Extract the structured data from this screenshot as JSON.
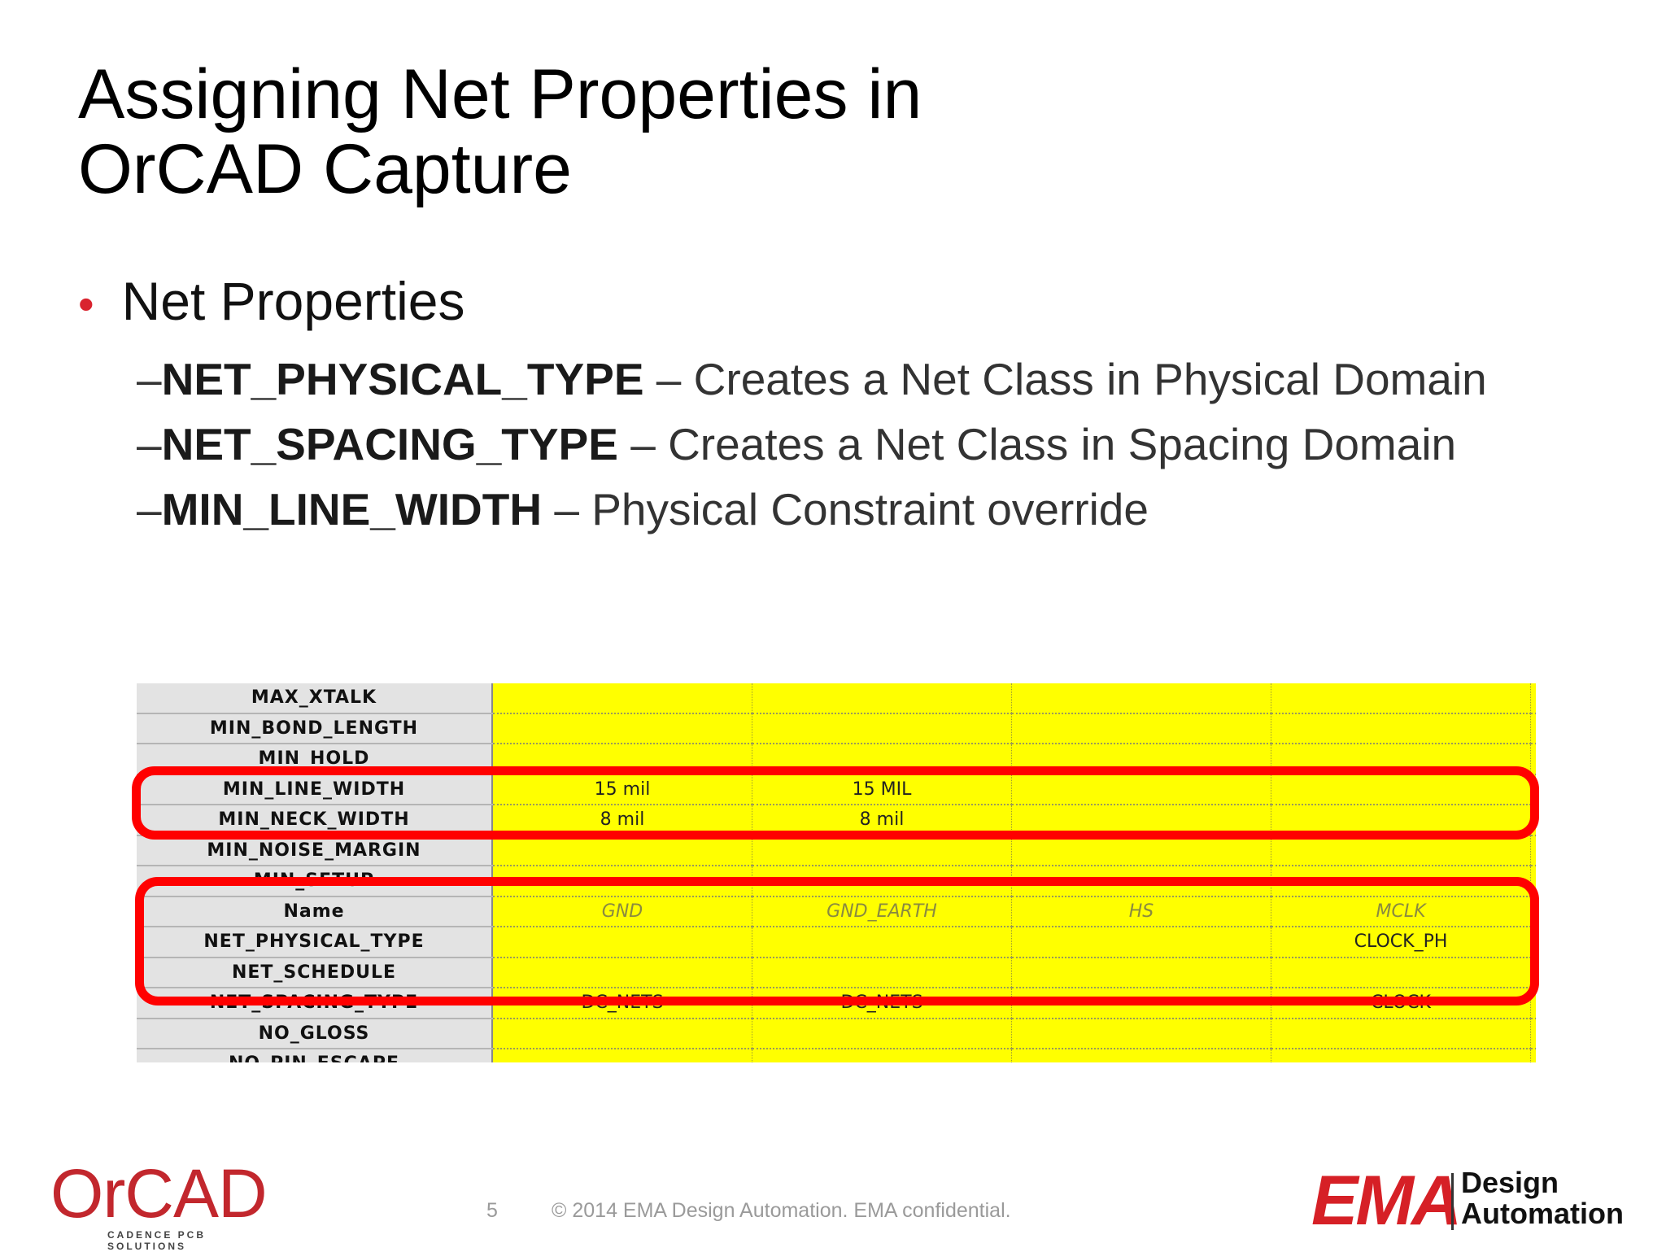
{
  "title": {
    "line1": "Assigning Net Properties in",
    "line2": "OrCAD Capture"
  },
  "bullet": {
    "symbol": "•",
    "text": "Net Properties"
  },
  "sub_items": [
    {
      "dash": "–",
      "term": "NET_PHYSICAL_TYPE",
      "desc": " – Creates a Net Class in Physical Domain"
    },
    {
      "dash": "–",
      "term": "NET_SPACING_TYPE",
      "desc": " – Creates a Net Class in Spacing Domain"
    },
    {
      "dash": "–",
      "term": "MIN_LINE_WIDTH",
      "desc": " – Physical Constraint override"
    }
  ],
  "grid": {
    "rows": [
      {
        "name": "MAX_XTALK",
        "cells": [
          "",
          "",
          "",
          ""
        ]
      },
      {
        "name": "MIN_BOND_LENGTH",
        "cells": [
          "",
          "",
          "",
          ""
        ]
      },
      {
        "name": "MIN_HOLD",
        "cells": [
          "",
          "",
          "",
          ""
        ]
      },
      {
        "name": "MIN_LINE_WIDTH",
        "cells": [
          "15 mil",
          "15 MIL",
          "",
          ""
        ]
      },
      {
        "name": "MIN_NECK_WIDTH",
        "cells": [
          "8 mil",
          "8 mil",
          "",
          ""
        ]
      },
      {
        "name": "MIN_NOISE_MARGIN",
        "cells": [
          "",
          "",
          "",
          ""
        ]
      },
      {
        "name": "MIN_SETUP",
        "cells": [
          "",
          "",
          "",
          ""
        ]
      },
      {
        "name": "Name",
        "cells": [
          "GND",
          "GND_EARTH",
          "HS",
          "MCLK"
        ]
      },
      {
        "name": "NET_PHYSICAL_TYPE",
        "cells": [
          "",
          "",
          "",
          "CLOCK_PH"
        ]
      },
      {
        "name": "NET_SCHEDULE",
        "cells": [
          "",
          "",
          "",
          ""
        ]
      },
      {
        "name": "NET_SPACING_TYPE",
        "cells": [
          "DC_NETS",
          "DC_NETS",
          "",
          "CLOCK"
        ]
      },
      {
        "name": "NO_GLOSS",
        "cells": [
          "",
          "",
          "",
          ""
        ]
      },
      {
        "name": "NO_PIN_ESCAPE",
        "cells": [
          "",
          "",
          "",
          ""
        ]
      }
    ]
  },
  "colors": {
    "highlight": "#ff0000",
    "cell_fill": "#ffff00",
    "bullet": "#d9232e"
  },
  "footer": {
    "page_number": "5",
    "copyright": "© 2014 EMA Design Automation. EMA confidential."
  },
  "logos": {
    "orcad": {
      "word": "OrCAD",
      "tagline": "CADENCE PCB SOLUTIONS"
    },
    "ema": {
      "word": "EMA",
      "line1": "Design",
      "line2": "Automation"
    }
  }
}
